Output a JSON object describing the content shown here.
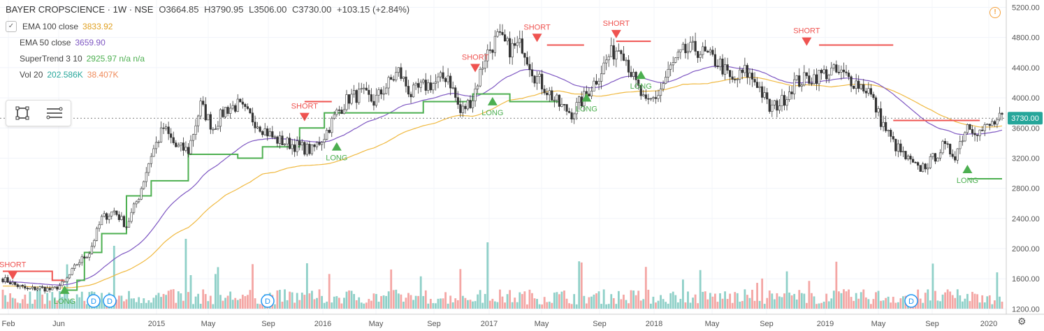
{
  "header": {
    "symbol": "BAYER CROPSCIENCE · 1W · NSE",
    "open": "O3664.85",
    "high": "H3790.95",
    "low": "L3506.00",
    "close": "C3730.00",
    "change": "+103.15 (+2.84%)"
  },
  "indicators": [
    {
      "label": "EMA 100 close",
      "value": "3833.92",
      "color": "#f0b940"
    },
    {
      "label": "EMA 50 close",
      "value": "3659.90",
      "color": "#7e57c2"
    },
    {
      "label": "SuperTrend 3 10",
      "value": "2925.97  n/a  n/a",
      "color": "#4caf50"
    },
    {
      "label": "Vol 20",
      "value": "202.586K",
      "value2": "38.407K",
      "color": "#26a69a",
      "color2": "#ef9a6a"
    }
  ],
  "price_tag": "3730.00",
  "colors": {
    "up": "#26a69a",
    "down": "#ef5350",
    "ema100": "#f0b940",
    "ema50": "#7e57c2",
    "st_up": "#4caf50",
    "st_down": "#ef5350",
    "vol_up": "#8fd0c8",
    "vol_down": "#f4a6a4"
  },
  "icons": [
    "rectangle-tool-icon",
    "lines-tool-icon",
    "warning-icon",
    "settings-icon"
  ],
  "chart_data": {
    "type": "candlestick",
    "xlabels": [
      "Feb",
      "Jun",
      "2015",
      "May",
      "Sep",
      "2016",
      "May",
      "Sep",
      "2017",
      "May",
      "Sep",
      "2018",
      "May",
      "Sep",
      "2019",
      "May",
      "Sep",
      "2020"
    ],
    "yticks": [
      1200,
      1600,
      2000,
      2400,
      2800,
      3200,
      3600,
      4000,
      4400,
      4800,
      5200
    ],
    "ytick_labels": [
      "1200.00",
      "1600.00",
      "2000.00",
      "2400.00",
      "2800.00",
      "3200.00",
      "3600.00",
      "4000.00",
      "4400.00",
      "4800.00",
      "5200.00"
    ],
    "ylim": [
      1130,
      5260
    ],
    "close_series": [
      [
        0,
        1600
      ],
      [
        5,
        1520
      ],
      [
        10,
        1460
      ],
      [
        15,
        1480
      ],
      [
        20,
        1450
      ],
      [
        25,
        1550
      ],
      [
        30,
        1800
      ],
      [
        35,
        1950
      ],
      [
        40,
        2400
      ],
      [
        45,
        2500
      ],
      [
        50,
        2300
      ],
      [
        55,
        2700
      ],
      [
        60,
        3250
      ],
      [
        65,
        3600
      ],
      [
        70,
        3350
      ],
      [
        75,
        3300
      ],
      [
        80,
        3900
      ],
      [
        85,
        3600
      ],
      [
        90,
        3850
      ],
      [
        95,
        3900
      ],
      [
        100,
        3750
      ],
      [
        105,
        3600
      ],
      [
        110,
        3450
      ],
      [
        115,
        3400
      ],
      [
        120,
        3350
      ],
      [
        125,
        3300
      ],
      [
        130,
        3500
      ],
      [
        135,
        3800
      ],
      [
        140,
        4000
      ],
      [
        145,
        4050
      ],
      [
        150,
        3950
      ],
      [
        155,
        4150
      ],
      [
        160,
        4350
      ],
      [
        165,
        4050
      ],
      [
        170,
        4150
      ],
      [
        175,
        4200
      ],
      [
        180,
        4300
      ],
      [
        185,
        3800
      ],
      [
        190,
        4000
      ],
      [
        195,
        4550
      ],
      [
        200,
        4800
      ],
      [
        205,
        4650
      ],
      [
        210,
        4700
      ],
      [
        215,
        4300
      ],
      [
        220,
        4100
      ],
      [
        225,
        3900
      ],
      [
        230,
        3800
      ],
      [
        235,
        4000
      ],
      [
        240,
        4250
      ],
      [
        245,
        4550
      ],
      [
        250,
        4700
      ],
      [
        255,
        4250
      ],
      [
        260,
        3900
      ],
      [
        265,
        4050
      ],
      [
        270,
        4400
      ],
      [
        275,
        4600
      ],
      [
        280,
        4650
      ],
      [
        285,
        4550
      ],
      [
        290,
        4450
      ],
      [
        295,
        4200
      ],
      [
        300,
        4350
      ],
      [
        305,
        4200
      ],
      [
        310,
        3850
      ],
      [
        315,
        3950
      ],
      [
        320,
        4200
      ],
      [
        325,
        4250
      ],
      [
        330,
        4300
      ],
      [
        335,
        4350
      ],
      [
        340,
        4300
      ],
      [
        345,
        4200
      ],
      [
        350,
        4100
      ],
      [
        355,
        3700
      ],
      [
        360,
        3400
      ],
      [
        365,
        3200
      ],
      [
        370,
        3050
      ],
      [
        375,
        3150
      ],
      [
        380,
        3350
      ],
      [
        385,
        3250
      ],
      [
        390,
        3650
      ],
      [
        395,
        3550
      ],
      [
        400,
        3650
      ],
      [
        404,
        3730
      ]
    ],
    "supertrend_long": {
      "start": 25,
      "points": [
        [
          25,
          1450
        ],
        [
          30,
          1580
        ],
        [
          33,
          1950
        ],
        [
          40,
          2200
        ],
        [
          50,
          2700
        ],
        [
          60,
          2900
        ],
        [
          75,
          3250
        ],
        [
          95,
          3200
        ],
        [
          105,
          3350
        ],
        [
          120,
          3600
        ],
        [
          130,
          3800
        ],
        [
          150,
          3800
        ],
        [
          170,
          3950
        ],
        [
          190,
          4050
        ],
        [
          205,
          3950
        ],
        [
          225,
          3950
        ]
      ],
      "end_value": 2925.97
    },
    "supertrend_short": [
      [
        0,
        1700
      ],
      [
        20,
        1580
      ]
    ],
    "signals": [
      {
        "label": "SHORT",
        "value": 1700
      },
      {
        "label": "LONG",
        "value": 1400
      },
      {
        "label": "SHORT",
        "value": 3800
      },
      {
        "label": "LONG",
        "value": 3300
      },
      {
        "label": "SHORT",
        "value": 4450
      },
      {
        "label": "LONG",
        "value": 3900
      },
      {
        "label": "SHORT",
        "value": 4850
      },
      {
        "label": "LONG",
        "value": 3950
      },
      {
        "label": "SHORT",
        "value": 4900
      },
      {
        "label": "LONG",
        "value": 4250
      },
      {
        "label": "SHORT",
        "value": 4800
      },
      {
        "label": "LONG",
        "value": 3000
      }
    ],
    "dividend_markers": [
      "D",
      "D",
      "D",
      "D"
    ]
  }
}
